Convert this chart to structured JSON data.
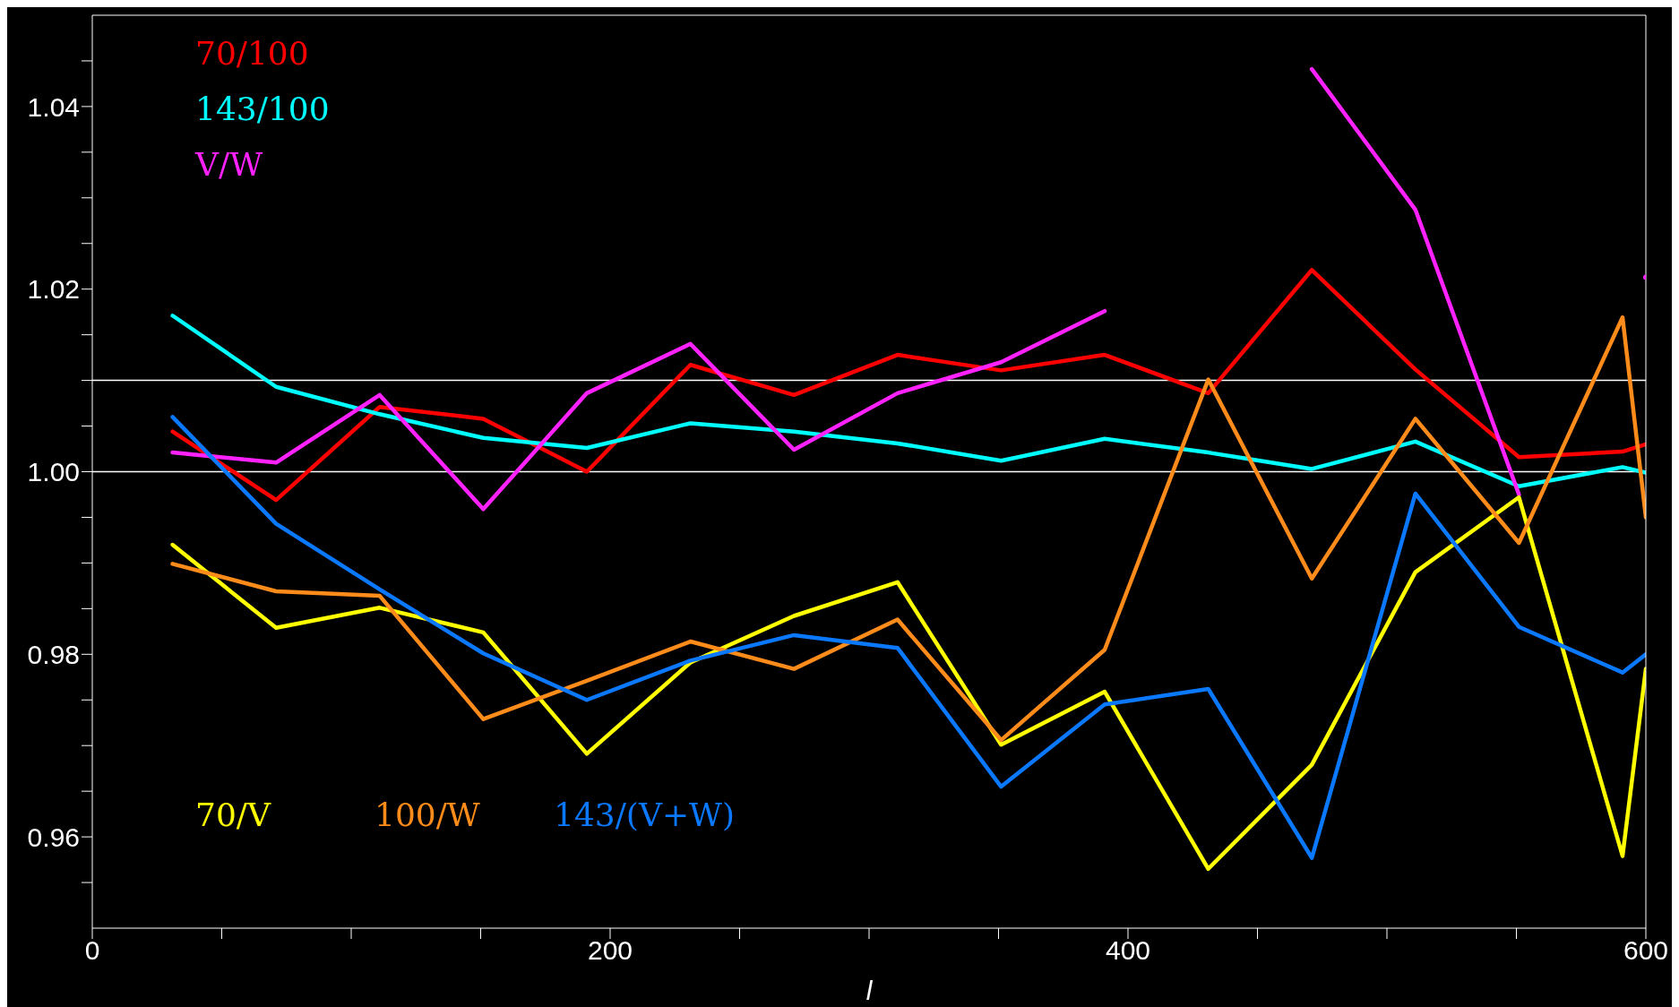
{
  "chart_data": {
    "type": "line",
    "xlabel": "l",
    "x": [
      31,
      71,
      111,
      151,
      191,
      231,
      271,
      311,
      351,
      391,
      431,
      471,
      511,
      551,
      591,
      600
    ],
    "xlim": [
      0,
      600
    ],
    "xticks": [
      0,
      {
        "value": 50,
        "label": null
      },
      {
        "value": 100,
        "label": null
      },
      {
        "value": 150,
        "label": null
      },
      200,
      {
        "value": 250,
        "label": null
      },
      {
        "value": 300,
        "label": null
      },
      {
        "value": 350,
        "label": null
      },
      400,
      {
        "value": 450,
        "label": null
      },
      {
        "value": 500,
        "label": null
      },
      {
        "value": 550,
        "label": null
      },
      600
    ],
    "ylim": [
      0.95,
      1.05
    ],
    "yticks": [
      {
        "value": 0.955,
        "label": null
      },
      0.96,
      {
        "value": 0.965,
        "label": null
      },
      {
        "value": 0.97,
        "label": null
      },
      {
        "value": 0.975,
        "label": null
      },
      0.98,
      {
        "value": 0.985,
        "label": null
      },
      {
        "value": 0.99,
        "label": null
      },
      {
        "value": 0.995,
        "label": null
      },
      {
        "value": 1.0,
        "label": "1.00"
      },
      {
        "value": 1.005,
        "label": null
      },
      {
        "value": 1.01,
        "label": null
      },
      {
        "value": 1.015,
        "label": null
      },
      1.02,
      {
        "value": 1.025,
        "label": null
      },
      {
        "value": 1.03,
        "label": null
      },
      {
        "value": 1.035,
        "label": null
      },
      1.04,
      {
        "value": 1.045,
        "label": null
      }
    ],
    "grid": false,
    "marker": "none",
    "line_style": "solid",
    "ref_lines": [
      {
        "axis": "y",
        "value": 1.0,
        "color": "#ffffff"
      },
      {
        "axis": "y",
        "value": 1.01,
        "color": "#ffffff"
      }
    ],
    "series": [
      {
        "name": "70/100",
        "color": "#ff0000",
        "values": [
          1.0044,
          0.9969,
          1.0071,
          1.0058,
          1.0,
          1.0117,
          1.0084,
          1.0128,
          1.0111,
          1.0128,
          1.0086,
          1.0221,
          1.0112,
          1.0016,
          1.0022,
          1.003
        ]
      },
      {
        "name": "143/100",
        "color": "#00ffff",
        "values": [
          1.0171,
          1.0093,
          1.0063,
          1.0037,
          1.0026,
          1.0053,
          1.0044,
          1.0031,
          1.0012,
          1.0036,
          1.0021,
          1.0003,
          1.0033,
          0.9984,
          1.0005,
          0.9999
        ]
      },
      {
        "name": "V/W",
        "color": "#ff22ff",
        "values": [
          1.0021,
          1.001,
          1.0084,
          0.9959,
          1.0086,
          1.014,
          1.0024,
          1.0086,
          1.012,
          1.0176,
          null,
          1.0441,
          1.0287,
          0.9975,
          null,
          1.0213
        ]
      },
      {
        "name": "70/V",
        "color": "#ffff00",
        "values": [
          0.992,
          0.9829,
          0.9851,
          0.9824,
          0.9691,
          0.9791,
          0.9842,
          0.9879,
          0.9701,
          0.9759,
          0.9565,
          0.9679,
          0.989,
          0.9972,
          0.9579,
          0.9784
        ]
      },
      {
        "name": "100/W",
        "color": "#ff8c1a",
        "values": [
          0.9899,
          0.9869,
          0.9864,
          0.9729,
          0.9771,
          0.9814,
          0.9784,
          0.9838,
          0.9706,
          0.9805,
          1.0101,
          0.9883,
          1.0058,
          0.9922,
          1.0169,
          0.995
        ]
      },
      {
        "name": "143/(V+W)",
        "color": "#0a78ff",
        "values": [
          1.006,
          0.9943,
          0.9871,
          0.9801,
          0.975,
          0.9793,
          0.9821,
          0.9807,
          0.9655,
          0.9745,
          0.9762,
          0.9577,
          0.9976,
          0.983,
          0.978,
          0.98
        ]
      }
    ]
  }
}
